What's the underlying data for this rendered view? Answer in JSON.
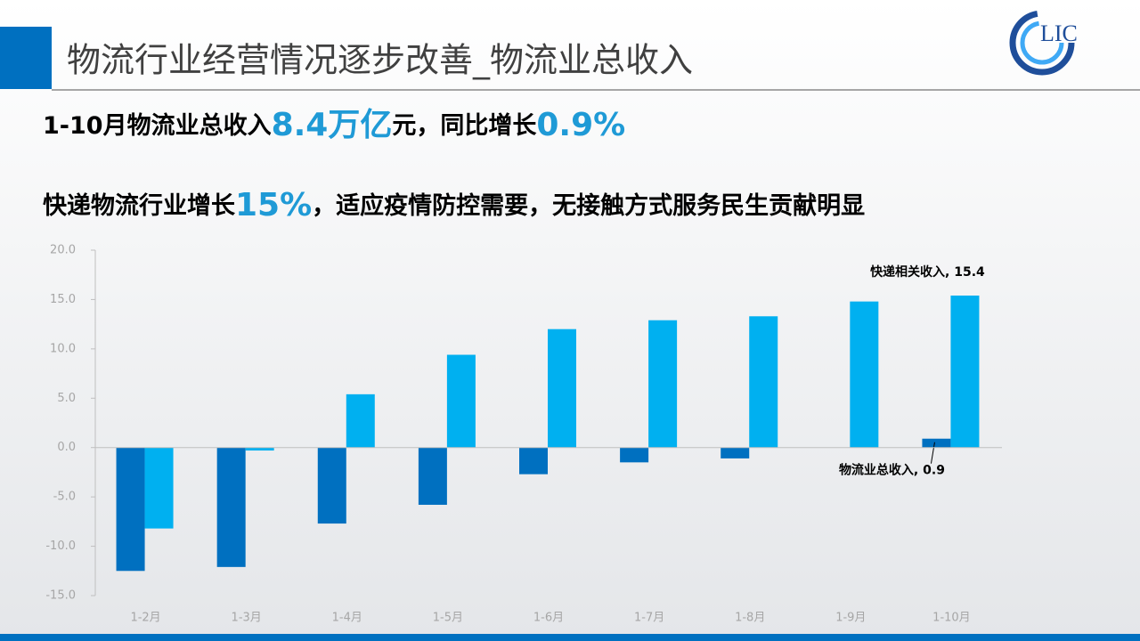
{
  "header": {
    "title": "物流行业经营情况逐步改善_物流业总收入",
    "logo": "LIC"
  },
  "headline_1": [
    "1-10月物流业总收入",
    "8.4万亿",
    "元，同比增长",
    "0.9%"
  ],
  "headline_2": [
    "快递物流行业增长",
    "15%",
    "，适应疫情防控需要，无接触方式服务民生贡献明显"
  ],
  "chart_data": {
    "type": "bar",
    "categories": [
      "1-2月",
      "1-3月",
      "1-4月",
      "1-5月",
      "1-6月",
      "1-7月",
      "1-8月",
      "1-9月",
      "1-10月"
    ],
    "series": [
      {
        "name": "物流业总收入",
        "color": "#0070c0",
        "values": [
          -12.5,
          -12.1,
          -7.7,
          -5.8,
          -2.7,
          -1.5,
          -1.1,
          0,
          0.9
        ],
        "value_labels": [
          null,
          null,
          null,
          null,
          null,
          null,
          null,
          null,
          "物流业总收入, 0.9"
        ]
      },
      {
        "name": "快递相关收入",
        "color": "#00b0f0",
        "values": [
          -8.2,
          -0.3,
          5.4,
          9.4,
          12.0,
          12.9,
          13.3,
          14.8,
          15.4
        ],
        "value_labels": [
          null,
          null,
          null,
          null,
          null,
          null,
          null,
          null,
          "快递相关收入, 15.4"
        ]
      }
    ],
    "ylim": [
      -15,
      20
    ],
    "yticks": [
      {
        "value": -15,
        "label": "-15.0"
      },
      {
        "value": -10,
        "label": "-10.0"
      },
      {
        "value": -5,
        "label": "-5.0"
      },
      {
        "value": 0,
        "label": "0.0"
      },
      {
        "value": 5,
        "label": "5.0"
      },
      {
        "value": 10,
        "label": "10.0"
      },
      {
        "value": 15,
        "label": "15.0"
      },
      {
        "value": 20,
        "label": "20.0"
      }
    ],
    "grid": false
  }
}
